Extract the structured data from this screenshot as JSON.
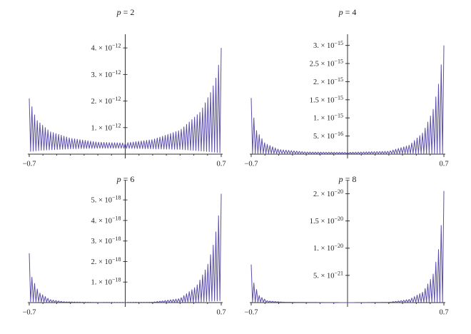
{
  "colors": {
    "line": "#5b4fa8",
    "axis": "#333333",
    "text": "#222222"
  },
  "chart_data": [
    {
      "type": "line",
      "title_prefix": "p",
      "title_value": "= 2",
      "x_tick_labels": [
        "−0.7",
        "0.7"
      ],
      "xlim": [
        -0.7,
        0.7
      ],
      "ylim": [
        0,
        4.3e-12
      ],
      "y_ticks": [
        {
          "value": 1e-12,
          "mant": "1. × 10",
          "exp": "−12"
        },
        {
          "value": 2e-12,
          "mant": "2. × 10",
          "exp": "−12"
        },
        {
          "value": 3e-12,
          "mant": "3. × 10",
          "exp": "−12"
        },
        {
          "value": 4e-12,
          "mant": "4. × 10",
          "exp": "−12"
        }
      ],
      "envelope": [
        [
          -0.7,
          2.1e-12
        ],
        [
          -0.65,
          1.3e-12
        ],
        [
          -0.55,
          8.5e-13
        ],
        [
          -0.4,
          6e-13
        ],
        [
          -0.2,
          4.5e-13
        ],
        [
          0,
          4.2e-13
        ],
        [
          0.2,
          5.5e-13
        ],
        [
          0.4,
          9e-13
        ],
        [
          0.55,
          1.6e-12
        ],
        [
          0.63,
          2.4e-12
        ],
        [
          0.67,
          3e-12
        ],
        [
          0.7,
          4e-12
        ]
      ],
      "floor": [
        [
          -0.7,
          1e-13
        ],
        [
          -0.6,
          1.5e-13
        ],
        [
          -0.4,
          2e-13
        ],
        [
          -0.2,
          2.2e-13
        ],
        [
          0,
          2.2e-13
        ],
        [
          0.2,
          2e-13
        ],
        [
          0.4,
          1.8e-13
        ],
        [
          0.6,
          1e-13
        ],
        [
          0.7,
          5e-14
        ]
      ],
      "oscillations": 72,
      "grid": false
    },
    {
      "type": "line",
      "title_prefix": "p",
      "title_value": "= 4",
      "x_tick_labels": [
        "−0.7",
        "0.7"
      ],
      "xlim": [
        -0.7,
        0.7
      ],
      "ylim": [
        0,
        3.15e-15
      ],
      "y_ticks": [
        {
          "value": 5e-16,
          "mant": "5. × 10",
          "exp": "−16"
        },
        {
          "value": 1e-15,
          "mant": "1. × 10",
          "exp": "−15"
        },
        {
          "value": 1.5e-15,
          "mant": "1.5 × 10",
          "exp": "−15"
        },
        {
          "value": 2e-15,
          "mant": "2. × 10",
          "exp": "−15"
        },
        {
          "value": 2.5e-15,
          "mant": "2.5 × 10",
          "exp": "−15"
        },
        {
          "value": 3e-15,
          "mant": "3. × 10",
          "exp": "−15"
        }
      ],
      "envelope": [
        [
          -0.7,
          1.55e-15
        ],
        [
          -0.67,
          7e-16
        ],
        [
          -0.6,
          3e-16
        ],
        [
          -0.5,
          1.3e-16
        ],
        [
          -0.3,
          6e-17
        ],
        [
          0,
          5e-17
        ],
        [
          0.3,
          8e-17
        ],
        [
          0.45,
          2.5e-16
        ],
        [
          0.55,
          6e-16
        ],
        [
          0.62,
          1.2e-15
        ],
        [
          0.66,
          1.9e-15
        ],
        [
          0.7,
          3e-15
        ]
      ],
      "floor": [
        [
          -0.7,
          2e-17
        ],
        [
          -0.5,
          2e-17
        ],
        [
          0,
          1e-17
        ],
        [
          0.5,
          2e-17
        ],
        [
          0.7,
          2e-17
        ]
      ],
      "oscillations": 72,
      "grid": false
    },
    {
      "type": "line",
      "title_prefix": "p",
      "title_value": "= 6",
      "x_tick_labels": [
        "−0.7",
        "0.7"
      ],
      "xlim": [
        -0.7,
        0.7
      ],
      "ylim": [
        0,
        5.7e-18
      ],
      "y_ticks": [
        {
          "value": 1e-18,
          "mant": "1. × 10",
          "exp": "−18"
        },
        {
          "value": 2e-18,
          "mant": "2. × 10",
          "exp": "−18"
        },
        {
          "value": 3e-18,
          "mant": "3. × 10",
          "exp": "−18"
        },
        {
          "value": 4e-18,
          "mant": "4. × 10",
          "exp": "−18"
        },
        {
          "value": 5e-18,
          "mant": "5. × 10",
          "exp": "−18"
        }
      ],
      "envelope": [
        [
          -0.7,
          2.4e-18
        ],
        [
          -0.68,
          1.2e-18
        ],
        [
          -0.63,
          5e-19
        ],
        [
          -0.55,
          1.5e-19
        ],
        [
          -0.45,
          4e-20
        ],
        [
          -0.2,
          1e-20
        ],
        [
          0.2,
          2e-20
        ],
        [
          0.4,
          2e-19
        ],
        [
          0.52,
          8e-19
        ],
        [
          0.6,
          1.8e-18
        ],
        [
          0.65,
          3e-18
        ],
        [
          0.68,
          4.2e-18
        ],
        [
          0.7,
          5.3e-18
        ]
      ],
      "floor": [
        [
          -0.7,
          5e-20
        ],
        [
          -0.5,
          1e-20
        ],
        [
          0,
          0.0
        ],
        [
          0.5,
          2e-20
        ],
        [
          0.7,
          1e-19
        ]
      ],
      "oscillations": 72,
      "grid": false
    },
    {
      "type": "line",
      "title_prefix": "p",
      "title_value": "= 8",
      "x_tick_labels": [
        "−0.7",
        "0.7"
      ],
      "xlim": [
        -0.7,
        0.7
      ],
      "ylim": [
        0,
        2.15e-20
      ],
      "y_ticks": [
        {
          "value": 5e-21,
          "mant": "5. × 10",
          "exp": "−21"
        },
        {
          "value": 1e-20,
          "mant": "1. × 10",
          "exp": "−20"
        },
        {
          "value": 1.5e-20,
          "mant": "1.5 × 10",
          "exp": "−20"
        },
        {
          "value": 2e-20,
          "mant": "2. × 10",
          "exp": "−20"
        }
      ],
      "envelope": [
        [
          -0.7,
          7e-21
        ],
        [
          -0.68,
          3.5e-21
        ],
        [
          -0.64,
          1.2e-21
        ],
        [
          -0.58,
          3e-22
        ],
        [
          -0.45,
          5e-23
        ],
        [
          0,
          0.0
        ],
        [
          0.3,
          5e-23
        ],
        [
          0.45,
          6e-22
        ],
        [
          0.55,
          2e-21
        ],
        [
          0.62,
          5e-21
        ],
        [
          0.66,
          9.5e-21
        ],
        [
          0.68,
          1.4e-20
        ],
        [
          0.7,
          2.05e-20
        ]
      ],
      "floor": [
        [
          -0.7,
          1e-22
        ],
        [
          0,
          0.0
        ],
        [
          0.7,
          1e-22
        ]
      ],
      "oscillations": 72,
      "grid": false
    }
  ]
}
